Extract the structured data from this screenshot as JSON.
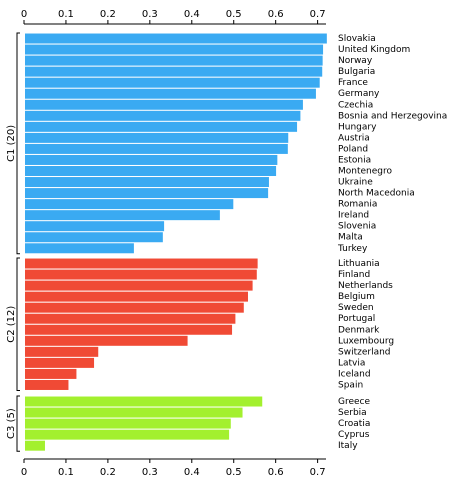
{
  "chart_data": {
    "type": "bar",
    "orientation": "horizontal",
    "xlim": [
      0,
      0.72
    ],
    "x_ticks": [
      0,
      0.1,
      0.2,
      0.3,
      0.4,
      0.5,
      0.6,
      0.7
    ],
    "x_tick_labels": [
      "0",
      "0.1",
      "0.2",
      "0.3",
      "0.4",
      "0.5",
      "0.6",
      "0.7"
    ],
    "axis_top": true,
    "axis_bottom": true,
    "grid": false,
    "groups": [
      {
        "label": "C1 (20)",
        "color": "#3aaaf2",
        "categories": [
          "Slovakia",
          "United Kingdom",
          "Norway",
          "Bulgaria",
          "France",
          "Germany",
          "Czechia",
          "Bosnia and Herzegovina",
          "Hungary",
          "Austria",
          "Poland",
          "Estonia",
          "Montenegro",
          "Ukraine",
          "North Macedonia",
          "Romania",
          "Ireland",
          "Slovenia",
          "Malta",
          "Turkey"
        ],
        "values": [
          0.722,
          0.713,
          0.712,
          0.711,
          0.705,
          0.696,
          0.665,
          0.659,
          0.651,
          0.63,
          0.629,
          0.604,
          0.601,
          0.584,
          0.582,
          0.499,
          0.467,
          0.334,
          0.331,
          0.262
        ]
      },
      {
        "label": "C2 (12)",
        "color": "#f04a35",
        "categories": [
          "Lithuania",
          "Finland",
          "Netherlands",
          "Belgium",
          "Sweden",
          "Portugal",
          "Denmark",
          "Luxembourg",
          "Switzerland",
          "Latvia",
          "Iceland",
          "Spain"
        ],
        "values": [
          0.557,
          0.555,
          0.545,
          0.534,
          0.524,
          0.504,
          0.496,
          0.39,
          0.177,
          0.167,
          0.125,
          0.106
        ]
      },
      {
        "label": "C3 (5)",
        "color": "#a3f02e",
        "categories": [
          "Greece",
          "Serbia",
          "Croatia",
          "Cyprus",
          "Italy"
        ],
        "values": [
          0.568,
          0.521,
          0.493,
          0.489,
          0.05
        ]
      }
    ]
  }
}
